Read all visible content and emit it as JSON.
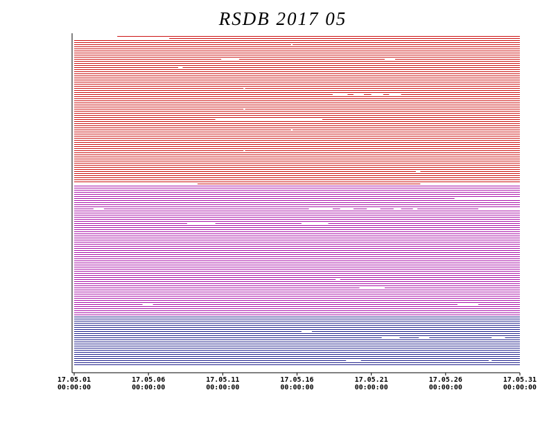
{
  "chart_data": {
    "type": "timeline",
    "title": "RSDB 2017 05",
    "xlim": [
      1,
      31
    ],
    "xticks": [
      {
        "value": 1,
        "label": "17.05.01\n00:00:00"
      },
      {
        "value": 6,
        "label": "17.05.06\n00:00:00"
      },
      {
        "value": 11,
        "label": "17.05.11\n00:00:00"
      },
      {
        "value": 16,
        "label": "17.05.16\n00:00:00"
      },
      {
        "value": 21,
        "label": "17.05.21\n00:00:00"
      },
      {
        "value": 26,
        "label": "17.05.26\n00:00:00"
      },
      {
        "value": 31,
        "label": "17.05.31\n00:00:00"
      }
    ],
    "groups": [
      {
        "color": "#cc1010",
        "rows": [
          [
            [
              3.9,
              31
            ]
          ],
          [
            [
              7.4,
              31
            ]
          ],
          [
            [
              1,
              31
            ]
          ],
          [
            [
              1,
              31
            ]
          ],
          [
            [
              1,
              15.6
            ],
            [
              15.7,
              31
            ]
          ],
          [
            [
              1,
              31
            ]
          ],
          [
            [
              1,
              31
            ]
          ],
          [
            [
              1,
              31
            ]
          ],
          [
            [
              1,
              31
            ]
          ],
          [
            [
              1,
              31
            ]
          ],
          [
            [
              1,
              31
            ]
          ],
          [
            [
              1,
              10.9
            ],
            [
              12.1,
              21.9
            ],
            [
              22.6,
              31
            ]
          ],
          [
            [
              1,
              31
            ]
          ],
          [
            [
              1,
              31
            ]
          ],
          [
            [
              1,
              31
            ]
          ],
          [
            [
              1,
              8
            ],
            [
              8.3,
              31
            ]
          ],
          [
            [
              1,
              31
            ]
          ],
          [
            [
              1,
              31
            ]
          ],
          [
            [
              1,
              31
            ]
          ],
          [
            [
              1,
              31
            ]
          ],
          [
            [
              1,
              31
            ]
          ],
          [
            [
              1,
              31
            ]
          ],
          [
            [
              1,
              31
            ]
          ],
          [
            [
              1,
              31
            ]
          ],
          [
            [
              1,
              31
            ]
          ],
          [
            [
              1,
              12.4
            ],
            [
              12.5,
              31
            ]
          ],
          [
            [
              1,
              31
            ]
          ],
          [
            [
              1,
              31
            ]
          ],
          [
            [
              1,
              18.4
            ],
            [
              19.4,
              19.8
            ],
            [
              20.5,
              21
            ],
            [
              21.8,
              22.2
            ],
            [
              23,
              31
            ]
          ],
          [
            [
              1,
              31
            ]
          ],
          [
            [
              1,
              31
            ]
          ],
          [
            [
              1,
              31
            ]
          ],
          [
            [
              1,
              31
            ]
          ],
          [
            [
              1,
              31
            ]
          ],
          [
            [
              1,
              31
            ]
          ],
          [
            [
              1,
              12.4
            ],
            [
              12.5,
              31
            ]
          ],
          [
            [
              1,
              31
            ]
          ],
          [
            [
              1,
              31
            ]
          ],
          [
            [
              1,
              31
            ]
          ],
          [
            [
              1,
              31
            ]
          ],
          [
            [
              1,
              10.5
            ],
            [
              17.7,
              31
            ]
          ],
          [
            [
              1,
              31
            ]
          ],
          [
            [
              1,
              31
            ]
          ],
          [
            [
              1,
              31
            ]
          ],
          [
            [
              1,
              31
            ]
          ],
          [
            [
              1,
              15.6
            ],
            [
              15.7,
              31
            ]
          ],
          [
            [
              1,
              31
            ]
          ],
          [
            [
              1,
              31
            ]
          ],
          [
            [
              1,
              31
            ]
          ],
          [
            [
              1,
              31
            ]
          ],
          [
            [
              1,
              31
            ]
          ],
          [
            [
              1,
              31
            ]
          ],
          [
            [
              1,
              31
            ]
          ],
          [
            [
              1,
              31
            ]
          ],
          [
            [
              1,
              31
            ]
          ],
          [
            [
              1,
              12.4
            ],
            [
              12.5,
              31
            ]
          ],
          [
            [
              1,
              31
            ]
          ],
          [
            [
              1,
              31
            ]
          ],
          [
            [
              1,
              31
            ]
          ],
          [
            [
              1,
              31
            ]
          ],
          [
            [
              1,
              31
            ]
          ],
          [
            [
              1,
              31
            ]
          ],
          [
            [
              1,
              31
            ]
          ],
          [
            [
              1,
              31
            ]
          ],
          [
            [
              1,
              31
            ]
          ],
          [
            [
              1,
              24
            ],
            [
              24.3,
              31
            ]
          ],
          [
            [
              1,
              31
            ]
          ],
          [
            [
              1,
              31
            ]
          ],
          [
            [
              1,
              31
            ]
          ],
          [
            [
              1,
              31
            ]
          ],
          [
            [
              1,
              31
            ]
          ],
          [
            [
              9.3,
              24.3
            ]
          ]
        ]
      },
      {
        "color": "#a810a8",
        "rows": [
          [
            [
              1,
              31
            ]
          ],
          [
            [
              1,
              31
            ]
          ],
          [
            [
              1,
              31
            ]
          ],
          [
            [
              1,
              31
            ]
          ],
          [
            [
              1,
              31
            ]
          ],
          [
            [
              1,
              31
            ]
          ],
          [
            [
              1,
              26.6
            ]
          ],
          [
            [
              1,
              31
            ]
          ],
          [
            [
              1,
              31
            ]
          ],
          [
            [
              1,
              31
            ]
          ],
          [
            [
              1,
              31
            ]
          ],
          [
            [
              1,
              2.3
            ],
            [
              3,
              16.8
            ],
            [
              18.4,
              18.9
            ],
            [
              19.8,
              20.7
            ],
            [
              21.6,
              22.5
            ],
            [
              23,
              23.8
            ],
            [
              24.1,
              28.2
            ]
          ],
          [
            [
              1,
              31
            ]
          ],
          [
            [
              1,
              31
            ]
          ],
          [
            [
              1,
              31
            ]
          ],
          [
            [
              1,
              31
            ]
          ],
          [
            [
              1,
              31
            ]
          ],
          [
            [
              1,
              31
            ]
          ],
          [
            [
              1,
              8.6
            ],
            [
              10.5,
              16.3
            ],
            [
              18.1,
              31
            ]
          ],
          [
            [
              1,
              31
            ]
          ],
          [
            [
              1,
              31
            ]
          ],
          [
            [
              1,
              31
            ]
          ],
          [
            [
              1,
              31
            ]
          ],
          [
            [
              1,
              31
            ]
          ],
          [
            [
              1,
              31
            ]
          ],
          [
            [
              1,
              31
            ]
          ],
          [
            [
              1,
              31
            ]
          ],
          [
            [
              1,
              31
            ]
          ],
          [
            [
              1,
              31
            ]
          ],
          [
            [
              1,
              31
            ]
          ],
          [
            [
              1,
              31
            ]
          ],
          [
            [
              1,
              31
            ]
          ],
          [
            [
              1,
              31
            ]
          ],
          [
            [
              1,
              31
            ]
          ],
          [
            [
              1,
              31
            ]
          ],
          [
            [
              1,
              31
            ]
          ],
          [
            [
              1,
              31
            ]
          ],
          [
            [
              1,
              31
            ]
          ],
          [
            [
              1,
              31
            ]
          ],
          [
            [
              1,
              31
            ]
          ],
          [
            [
              1,
              31
            ]
          ],
          [
            [
              1,
              31
            ]
          ],
          [
            [
              1,
              31
            ]
          ],
          [
            [
              1,
              31
            ]
          ],
          [
            [
              1,
              31
            ]
          ],
          [
            [
              1,
              18.6
            ],
            [
              18.9,
              31
            ]
          ],
          [
            [
              1,
              31
            ]
          ],
          [
            [
              1,
              31
            ]
          ],
          [
            [
              1,
              31
            ]
          ],
          [
            [
              1,
              20.2
            ],
            [
              21.9,
              31
            ]
          ],
          [
            [
              1,
              31
            ]
          ],
          [
            [
              1,
              31
            ]
          ],
          [
            [
              1,
              31
            ]
          ],
          [
            [
              1,
              31
            ]
          ],
          [
            [
              1,
              31
            ]
          ],
          [
            [
              1,
              31
            ]
          ],
          [
            [
              1,
              31
            ]
          ],
          [
            [
              1,
              5.6
            ],
            [
              6.3,
              26.8
            ],
            [
              28.2,
              31
            ]
          ],
          [
            [
              1,
              31
            ]
          ],
          [
            [
              1,
              31
            ]
          ],
          [
            [
              1,
              31
            ]
          ],
          [
            [
              1,
              31
            ]
          ],
          [
            [
              1,
              31
            ]
          ]
        ]
      },
      {
        "color": "#20208c",
        "rows": [
          [
            [
              1,
              31
            ]
          ],
          [
            [
              1,
              31
            ]
          ],
          [
            [
              1,
              31
            ]
          ],
          [
            [
              1,
              31
            ]
          ],
          [
            [
              1,
              31
            ]
          ],
          [
            [
              1,
              31
            ]
          ],
          [
            [
              1,
              31
            ]
          ],
          [
            [
              1,
              16.3
            ],
            [
              17,
              31
            ]
          ],
          [
            [
              1,
              31
            ]
          ],
          [
            [
              1,
              31
            ]
          ],
          [
            [
              1,
              21.7
            ],
            [
              22.9,
              24.2
            ],
            [
              24.9,
              29.1
            ],
            [
              30,
              31
            ]
          ],
          [
            [
              1,
              31
            ]
          ],
          [
            [
              1,
              31
            ]
          ],
          [
            [
              1,
              31
            ]
          ],
          [
            [
              1,
              31
            ]
          ],
          [
            [
              1,
              31
            ]
          ],
          [
            [
              1,
              31
            ]
          ],
          [
            [
              1,
              31
            ]
          ],
          [
            [
              1,
              31
            ]
          ],
          [
            [
              1,
              31
            ]
          ],
          [
            [
              1,
              31
            ]
          ],
          [
            [
              1,
              19.3
            ],
            [
              20.3,
              28.9
            ],
            [
              29.1,
              31
            ]
          ],
          [
            [
              1,
              31
            ]
          ],
          [
            [
              1,
              31
            ]
          ]
        ]
      }
    ]
  }
}
